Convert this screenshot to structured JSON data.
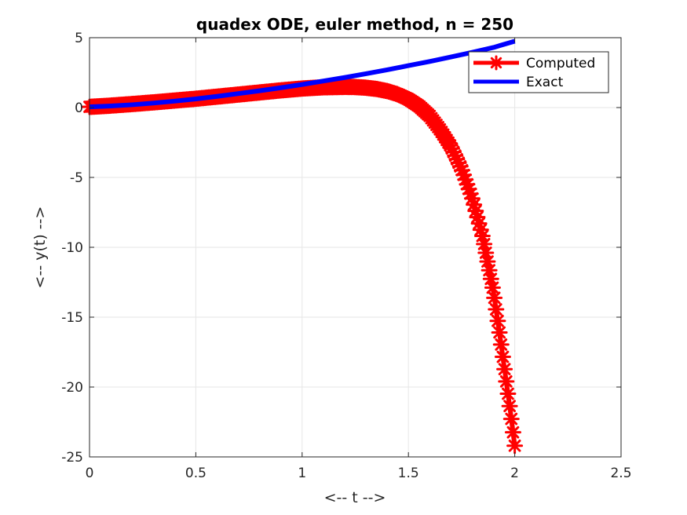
{
  "chart_data": {
    "type": "line",
    "title": "quadex ODE, euler method, n = 250",
    "xlabel": "<-- t -->",
    "ylabel": "<-- y(t) -->",
    "xlim": [
      0,
      2.5
    ],
    "ylim": [
      -25,
      5
    ],
    "xticks": [
      0,
      0.5,
      1,
      1.5,
      2,
      2.5
    ],
    "xtick_labels": [
      "0",
      "0.5",
      "1",
      "1.5",
      "2",
      "2.5"
    ],
    "yticks": [
      5,
      0,
      -5,
      -10,
      -15,
      -20,
      -25
    ],
    "ytick_labels": [
      "5",
      "0",
      "-5",
      "-10",
      "-15",
      "-20",
      "-25"
    ],
    "grid": true,
    "legend_position": "top-right",
    "series": [
      {
        "name": "Computed",
        "color": "#ff0000",
        "marker": "asterisk",
        "x": [
          0,
          0.1,
          0.2,
          0.3,
          0.4,
          0.5,
          0.6,
          0.7,
          0.8,
          0.9,
          1.0,
          1.1,
          1.2,
          1.25,
          1.3,
          1.35,
          1.4,
          1.45,
          1.5,
          1.55,
          1.6,
          1.65,
          1.7,
          1.75,
          1.8,
          1.85,
          1.9,
          1.93,
          1.96,
          1.98,
          2.0
        ],
        "y": [
          0.05,
          0.14,
          0.25,
          0.37,
          0.5,
          0.63,
          0.78,
          0.93,
          1.08,
          1.23,
          1.36,
          1.45,
          1.48,
          1.47,
          1.42,
          1.33,
          1.18,
          0.95,
          0.6,
          0.1,
          -0.6,
          -1.6,
          -2.8,
          -4.4,
          -6.5,
          -9.3,
          -13.2,
          -16.3,
          -19.6,
          -21.8,
          -24.2
        ]
      },
      {
        "name": "Exact",
        "color": "#0000ff",
        "marker": "none",
        "x": [
          0,
          0.1,
          0.2,
          0.3,
          0.4,
          0.5,
          0.6,
          0.7,
          0.8,
          0.9,
          1.0,
          1.1,
          1.2,
          1.3,
          1.4,
          1.5,
          1.6,
          1.7,
          1.8,
          1.9,
          2.0
        ],
        "y": [
          0.05,
          0.11,
          0.2,
          0.32,
          0.46,
          0.62,
          0.8,
          1.0,
          1.2,
          1.42,
          1.65,
          1.9,
          2.15,
          2.42,
          2.7,
          3.0,
          3.3,
          3.62,
          3.95,
          4.3,
          4.75
        ]
      }
    ]
  }
}
